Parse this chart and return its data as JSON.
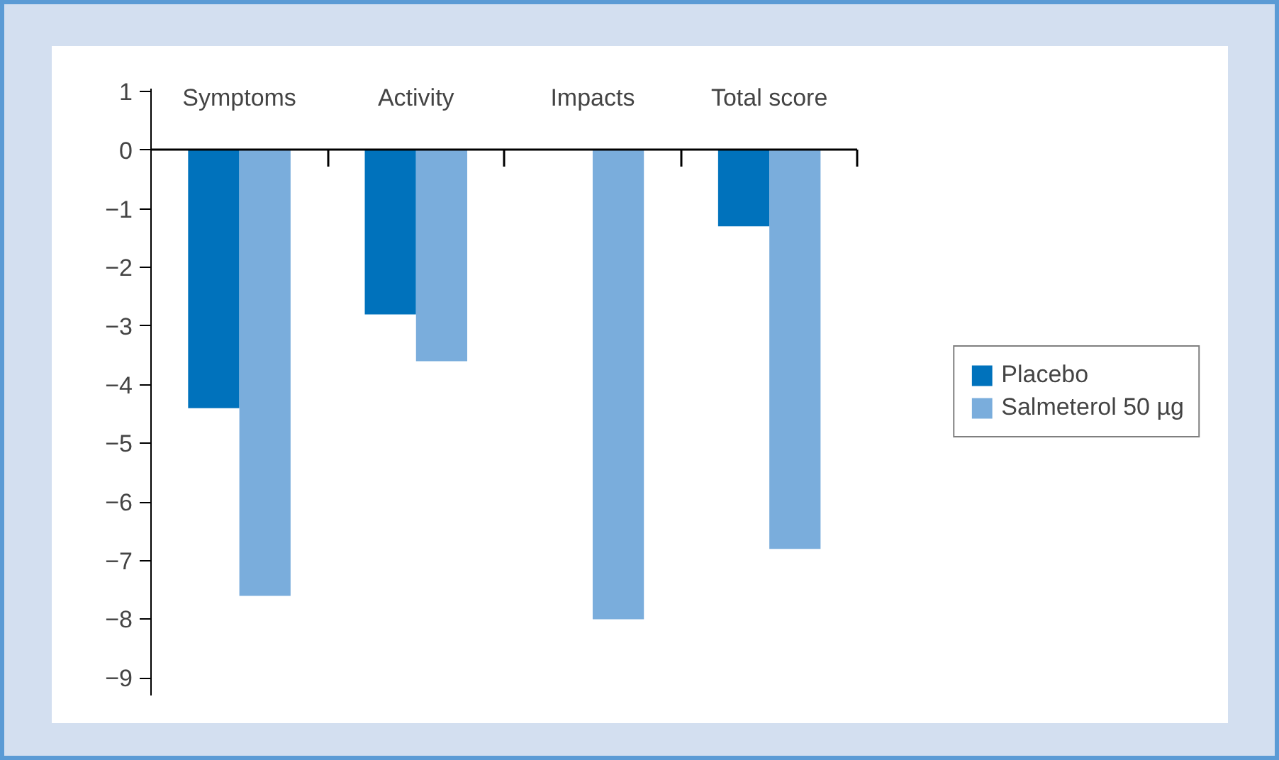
{
  "chart_data": {
    "type": "bar",
    "categories": [
      "Symptoms",
      "Activity",
      "Impacts",
      "Total score"
    ],
    "series": [
      {
        "name": "Placebo",
        "color": "#0072bc",
        "values": [
          -4.4,
          -2.8,
          null,
          -1.3
        ]
      },
      {
        "name": "Salmeterol 50 µg",
        "color": "#7aaddc",
        "values": [
          -7.6,
          -3.6,
          -8.0,
          -6.8
        ]
      }
    ],
    "ylim": [
      -9.3,
      1.05
    ],
    "yticks": [
      1,
      0,
      {
        "value": -1,
        "label": "−1"
      },
      {
        "value": -2,
        "label": "−2"
      },
      {
        "value": -3,
        "label": "−3"
      },
      {
        "value": -4,
        "label": "−4"
      },
      {
        "value": -5,
        "label": "−5"
      },
      {
        "value": -6,
        "label": "−6"
      },
      {
        "value": -7,
        "label": "−7"
      },
      {
        "value": -8,
        "label": "−8"
      },
      {
        "value": -9,
        "label": "−9"
      }
    ],
    "legend": "right"
  }
}
